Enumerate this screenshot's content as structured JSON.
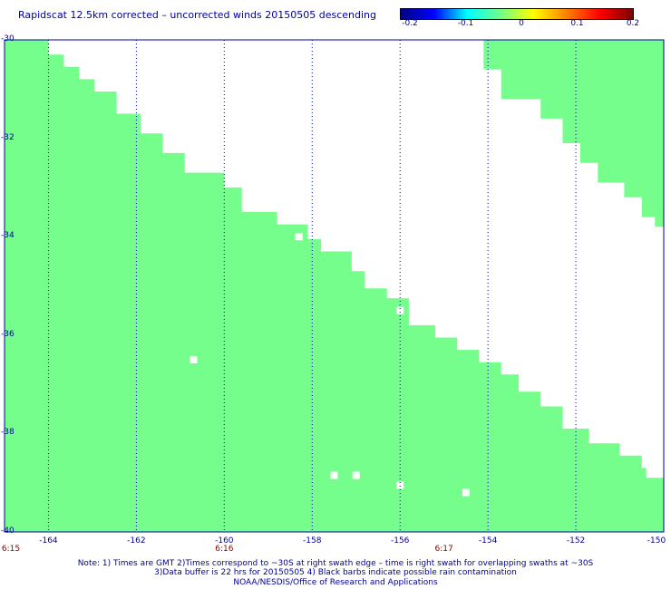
{
  "title": "Rapidscat 12.5km corrected – uncorrected winds 20150505 descending",
  "colorbar": {
    "ticks": [
      "-0.2",
      "-0.1",
      "0",
      "0.1",
      "0.2"
    ],
    "stops": [
      "#00007f",
      "#0000ff",
      "#00ffff",
      "#70ff8a",
      "#ffff00",
      "#ff8000",
      "#ff0000",
      "#7f0000"
    ]
  },
  "chart_data": {
    "type": "heatmap",
    "xlim": [
      -165,
      -150
    ],
    "ylim": [
      -40,
      -30
    ],
    "x_ticks": [
      "-164",
      "-162",
      "-160",
      "-158",
      "-156",
      "-154",
      "-152",
      "-150"
    ],
    "y_ticks": [
      "-30",
      "-32",
      "-34",
      "-36",
      "-38",
      "-40"
    ],
    "fill_color": "#76fe8c",
    "grid": true,
    "swath_value": 0,
    "left_swath_edge": [
      [
        -164,
        -30
      ],
      [
        -163.65,
        -30.3
      ],
      [
        -163.3,
        -30.55
      ],
      [
        -162.95,
        -30.8
      ],
      [
        -162.45,
        -31.05
      ],
      [
        -161.9,
        -31.5
      ],
      [
        -161.4,
        -31.9
      ],
      [
        -160.9,
        -32.3
      ],
      [
        -160,
        -32.7
      ],
      [
        -159.6,
        -33
      ],
      [
        -158.8,
        -33.5
      ],
      [
        -158.1,
        -33.75
      ],
      [
        -157.8,
        -34.05
      ],
      [
        -157.1,
        -34.3
      ],
      [
        -156.8,
        -34.7
      ],
      [
        -156.3,
        -35.05
      ],
      [
        -155.8,
        -35.25
      ],
      [
        -155.2,
        -35.8
      ],
      [
        -154.7,
        -36.05
      ],
      [
        -154.2,
        -36.3
      ],
      [
        -153.7,
        -36.55
      ],
      [
        -153.3,
        -36.8
      ],
      [
        -152.8,
        -37.15
      ],
      [
        -152.3,
        -37.45
      ],
      [
        -151.7,
        -37.9
      ],
      [
        -151,
        -38.2
      ],
      [
        -150.5,
        -38.45
      ],
      [
        -150.4,
        -38.7
      ],
      [
        -150,
        -38.9
      ]
    ],
    "right_swath_edge": [
      [
        -154.1,
        -30
      ],
      [
        -153.7,
        -30.6
      ],
      [
        -152.8,
        -31.2
      ],
      [
        -152.3,
        -31.6
      ],
      [
        -151.9,
        -32.1
      ],
      [
        -151.5,
        -32.5
      ],
      [
        -150.9,
        -32.9
      ],
      [
        -150.5,
        -33.2
      ],
      [
        -150.2,
        -33.6
      ],
      [
        -150,
        -33.8
      ]
    ],
    "no_data_cells": [
      [
        -158.3,
        -34
      ],
      [
        -156,
        -35.5
      ],
      [
        -160.7,
        -36.5
      ],
      [
        -157.5,
        -38.85
      ],
      [
        -157,
        -38.85
      ],
      [
        -156,
        -39.05
      ],
      [
        -154.5,
        -39.2
      ]
    ]
  },
  "time_labels": [
    {
      "lon": -165,
      "text": "6:15"
    },
    {
      "lon": -160,
      "text": "6:16"
    },
    {
      "lon": -155,
      "text": "6:17"
    }
  ],
  "notes": [
    "Note: 1) Times are GMT 2)Times correspond to ~30S at right swath edge – time is right swath for overlapping swaths at ~30S",
    "3)Data buffer is 22 hrs for 20150505 4) Black barbs indicate possible rain contamination",
    "NOAA/NESDIS/Office of Research and Applications"
  ]
}
